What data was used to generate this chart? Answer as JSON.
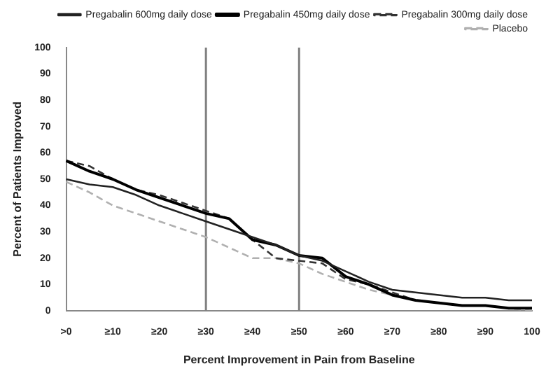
{
  "chart_data": {
    "type": "line",
    "xlabel": "Percent Improvement in Pain from Baseline",
    "ylabel": "Percent of Patients Improved",
    "categories": [
      ">0",
      null,
      "≥10",
      null,
      "≥20",
      null,
      "≥30",
      null,
      "≥40",
      null,
      "≥50",
      null,
      "≥60",
      null,
      "≥70",
      null,
      "≥80",
      null,
      "≥90",
      null,
      "100"
    ],
    "ylim": [
      0,
      100
    ],
    "yticks": [
      0,
      10,
      20,
      30,
      40,
      50,
      60,
      70,
      80,
      90,
      100
    ],
    "grid": false,
    "legend": "top right",
    "marker": "none",
    "ref_lines": [
      {
        "axis": "x",
        "value": "≥30",
        "color": "#808080"
      },
      {
        "axis": "x",
        "value": "≥50",
        "color": "#808080"
      }
    ],
    "series": [
      {
        "name": "Pregabalin 600mg daily dose",
        "color": "#222222",
        "line_style": "solid",
        "values": [
          50,
          48,
          47,
          44,
          40,
          37,
          34,
          31,
          28,
          25,
          21,
          19,
          15,
          11,
          8,
          7,
          6,
          5,
          5,
          4,
          4
        ]
      },
      {
        "name": "Pregabalin 450mg daily dose",
        "color": "#000000",
        "line_style": "solid",
        "values": [
          57,
          53,
          50,
          46,
          43,
          40,
          37,
          35,
          27,
          25,
          21,
          20,
          13,
          10,
          6,
          4,
          3,
          2,
          2,
          1,
          1
        ]
      },
      {
        "name": "Pregabalin 300mg daily dose",
        "color": "#333333",
        "line_style": "dashed",
        "values": [
          57,
          55,
          50,
          46,
          44,
          41,
          38,
          35,
          27,
          20,
          19,
          18,
          12,
          10,
          7,
          4,
          3,
          2,
          2,
          1,
          1
        ]
      },
      {
        "name": "Placebo",
        "color": "#b0b0b0",
        "line_style": "dashed",
        "values": [
          49,
          45,
          40,
          37,
          34,
          31,
          28,
          24,
          20,
          20,
          18,
          14,
          11,
          8,
          6,
          4,
          3,
          2,
          2,
          1,
          0
        ]
      }
    ]
  }
}
